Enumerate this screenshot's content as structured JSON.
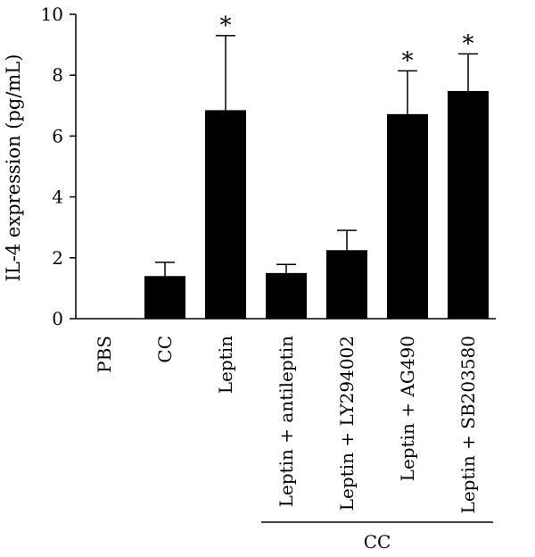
{
  "chart_data": {
    "type": "bar",
    "ylabel": "IL-4 expression (pg/mL)",
    "ylim": [
      0,
      10
    ],
    "yticks": [
      0,
      2,
      4,
      6,
      8,
      10
    ],
    "categories": [
      "PBS",
      "CC",
      "Leptin",
      "Leptin + antileptin",
      "Leptin + LY294002",
      "Leptin + AG490",
      "Leptin + SB203580"
    ],
    "values": [
      0,
      1.4,
      6.85,
      1.5,
      2.25,
      6.72,
      7.48
    ],
    "error": [
      0,
      0.45,
      2.45,
      0.28,
      0.65,
      1.42,
      1.22
    ],
    "significance": [
      "",
      "",
      "*",
      "",
      "",
      "*",
      "*"
    ],
    "group_label": "CC",
    "group_range": [
      3,
      6
    ],
    "bar_color": "#000000",
    "grid": false,
    "legend": "none"
  }
}
